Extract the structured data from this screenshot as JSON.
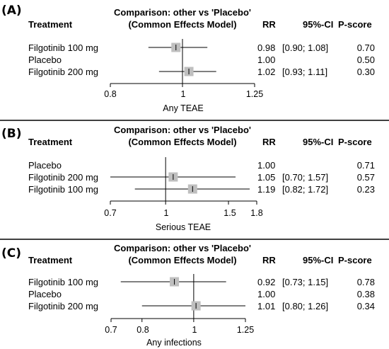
{
  "chart_data": [
    {
      "type": "forest",
      "panel_label": "(A)",
      "title_line1": "Comparison: other vs 'Placebo'",
      "title_line2": "(Common Effects Model)",
      "col_treatment": "Treatment",
      "col_rr": "RR",
      "col_ci": "95%-CI",
      "col_pscore": "P-score",
      "xlabel": "Any TEAE",
      "xlim": [
        0.8,
        1.25
      ],
      "xscale": "log",
      "ticks": [
        "0.8",
        "1",
        "1.25"
      ],
      "rows": [
        {
          "treatment": "Filgotinib 100 mg",
          "rr": "0.98",
          "ci": "[0.90; 1.08]",
          "pscore": "0.70",
          "est": 0.98,
          "lo": 0.9,
          "hi": 1.08
        },
        {
          "treatment": "Placebo",
          "rr": "1.00",
          "ci": "",
          "pscore": "0.50",
          "est": null,
          "lo": null,
          "hi": null
        },
        {
          "treatment": "Filgotinib 200 mg",
          "rr": "1.02",
          "ci": "[0.93; 1.11]",
          "pscore": "0.30",
          "est": 1.02,
          "lo": 0.93,
          "hi": 1.11
        }
      ]
    },
    {
      "type": "forest",
      "panel_label": "(B)",
      "title_line1": "Comparison: other vs 'Placebo'",
      "title_line2": "(Common Effects Model)",
      "col_treatment": "Treatment",
      "col_rr": "RR",
      "col_ci": "95%-CI",
      "col_pscore": "P-score",
      "xlabel": "Serious TEAE",
      "xlim": [
        0.7,
        1.8
      ],
      "xscale": "log",
      "ticks": [
        "0.7",
        "1",
        "1.5",
        "1.8"
      ],
      "rows": [
        {
          "treatment": "Placebo",
          "rr": "1.00",
          "ci": "",
          "pscore": "0.71",
          "est": null,
          "lo": null,
          "hi": null
        },
        {
          "treatment": "Filgotinib 200 mg",
          "rr": "1.05",
          "ci": "[0.70; 1.57]",
          "pscore": "0.57",
          "est": 1.05,
          "lo": 0.7,
          "hi": 1.57
        },
        {
          "treatment": "Filgotinib 100 mg",
          "rr": "1.19",
          "ci": "[0.82; 1.72]",
          "pscore": "0.23",
          "est": 1.19,
          "lo": 0.82,
          "hi": 1.72
        }
      ]
    },
    {
      "type": "forest",
      "panel_label": "(C)",
      "title_line1": "Comparison: other vs 'Placebo'",
      "title_line2": "(Common Effects Model)",
      "col_treatment": "Treatment",
      "col_rr": "RR",
      "col_ci": "95%-CI",
      "col_pscore": "P-score",
      "xlabel": "Any infections",
      "xlim": [
        0.7,
        1.25
      ],
      "xscale": "log",
      "ticks": [
        "0.7",
        "0.8",
        "1",
        "1.25"
      ],
      "rows": [
        {
          "treatment": "Filgotinib 100 mg",
          "rr": "0.92",
          "ci": "[0.73; 1.15]",
          "pscore": "0.78",
          "est": 0.92,
          "lo": 0.73,
          "hi": 1.15
        },
        {
          "treatment": "Placebo",
          "rr": "1.00",
          "ci": "",
          "pscore": "0.38",
          "est": null,
          "lo": null,
          "hi": null
        },
        {
          "treatment": "Filgotinib 200 mg",
          "rr": "1.01",
          "ci": "[0.80; 1.26]",
          "pscore": "0.34",
          "est": 1.01,
          "lo": 0.8,
          "hi": 1.26
        }
      ]
    }
  ]
}
